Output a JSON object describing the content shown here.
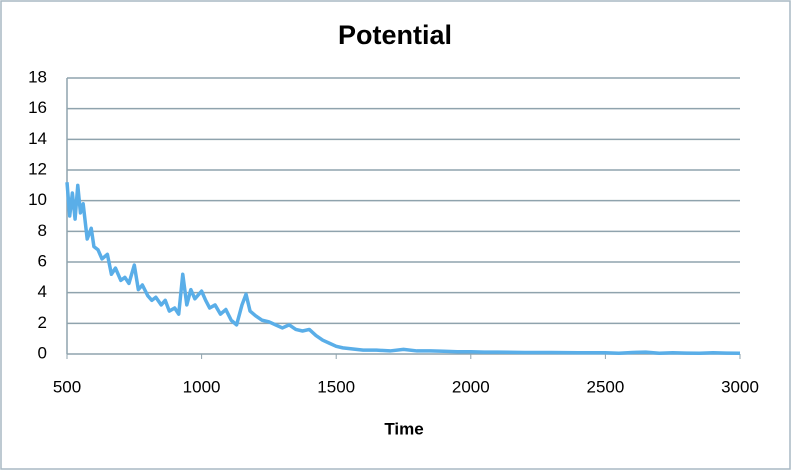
{
  "chart_data": {
    "type": "line",
    "title": "Potential",
    "x_label": "Time",
    "x": [
      500,
      510,
      520,
      530,
      540,
      550,
      560,
      575,
      590,
      600,
      615,
      630,
      650,
      665,
      680,
      700,
      715,
      730,
      750,
      765,
      780,
      800,
      815,
      830,
      850,
      865,
      880,
      900,
      915,
      930,
      945,
      960,
      975,
      1000,
      1015,
      1030,
      1050,
      1070,
      1090,
      1110,
      1130,
      1150,
      1165,
      1180,
      1200,
      1225,
      1250,
      1275,
      1300,
      1325,
      1350,
      1375,
      1400,
      1425,
      1450,
      1475,
      1500,
      1525,
      1550,
      1575,
      1600,
      1650,
      1700,
      1750,
      1800,
      1850,
      1900,
      1950,
      2000,
      2050,
      2100,
      2200,
      2300,
      2400,
      2500,
      2550,
      2600,
      2650,
      2700,
      2750,
      2800,
      2850,
      2900,
      2950,
      3000
    ],
    "series": [
      {
        "name": "Potential",
        "color": "#5aaee8",
        "values": [
          11.2,
          9.0,
          10.5,
          8.8,
          11.0,
          9.2,
          9.8,
          7.5,
          8.2,
          7.0,
          6.8,
          6.2,
          6.5,
          5.2,
          5.6,
          4.8,
          5.0,
          4.6,
          5.8,
          4.2,
          4.5,
          3.8,
          3.5,
          3.7,
          3.2,
          3.5,
          2.8,
          3.0,
          2.6,
          5.2,
          3.2,
          4.2,
          3.6,
          4.1,
          3.5,
          3.0,
          3.2,
          2.6,
          2.9,
          2.2,
          1.9,
          3.2,
          3.9,
          2.8,
          2.5,
          2.2,
          2.1,
          1.9,
          1.7,
          1.9,
          1.6,
          1.5,
          1.6,
          1.2,
          0.9,
          0.7,
          0.5,
          0.4,
          0.35,
          0.3,
          0.25,
          0.25,
          0.2,
          0.3,
          0.2,
          0.2,
          0.18,
          0.15,
          0.15,
          0.12,
          0.12,
          0.1,
          0.1,
          0.08,
          0.08,
          0.05,
          0.1,
          0.12,
          0.05,
          0.08,
          0.06,
          0.05,
          0.08,
          0.06,
          0.05
        ]
      }
    ],
    "xlim": [
      500,
      3000
    ],
    "xticks": [
      500,
      1000,
      1500,
      2000,
      2500,
      3000
    ],
    "ylim": [
      0,
      18
    ],
    "yticks": [
      0,
      2,
      4,
      6,
      8,
      10,
      12,
      14,
      16,
      18
    ],
    "grid": true
  }
}
